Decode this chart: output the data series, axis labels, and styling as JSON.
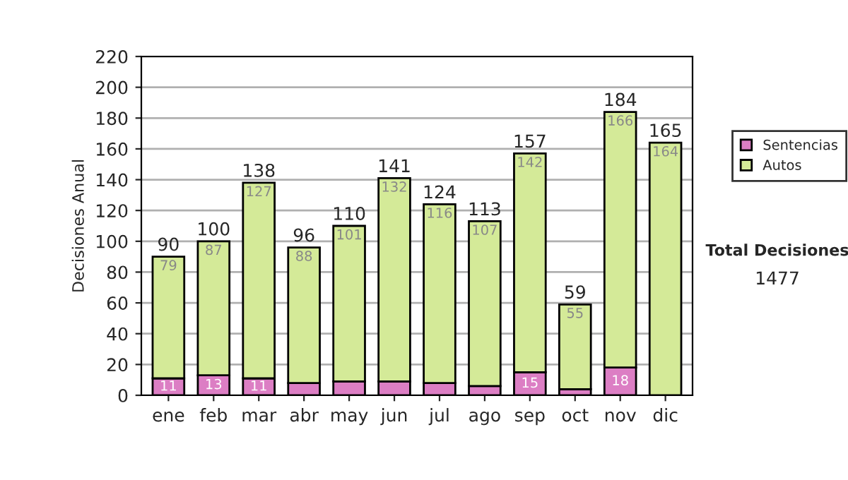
{
  "chart_data": {
    "type": "bar",
    "stacked": true,
    "ylabel": "Decisiones Anual",
    "categories": [
      "ene",
      "feb",
      "mar",
      "abr",
      "may",
      "jun",
      "jul",
      "ago",
      "sep",
      "oct",
      "nov",
      "dic"
    ],
    "series": [
      {
        "name": "Sentencias",
        "color": "#dc7ec4",
        "values": [
          11,
          13,
          11,
          8,
          9,
          9,
          8,
          6,
          15,
          4,
          18,
          null
        ],
        "value_labels": [
          "11",
          "13",
          "11",
          null,
          null,
          null,
          null,
          null,
          "15",
          null,
          "18",
          null
        ]
      },
      {
        "name": "Autos",
        "color": "#d4ea98",
        "values": [
          79,
          87,
          127,
          88,
          101,
          132,
          116,
          107,
          142,
          55,
          166,
          164
        ],
        "value_labels": [
          "79",
          "87",
          "127",
          "88",
          "101",
          "132",
          "116",
          "107",
          "142",
          "55",
          "166",
          "164"
        ]
      }
    ],
    "totals": [
      "90",
      "100",
      "138",
      "96",
      "110",
      "141",
      "124",
      "113",
      "157",
      "59",
      "184",
      "165"
    ],
    "ylim": [
      0,
      220
    ],
    "yticks": [
      0,
      20,
      40,
      60,
      80,
      100,
      120,
      140,
      160,
      180,
      200,
      220
    ],
    "grid": "y",
    "legend": "right",
    "annotations": [
      "Total Decisiones",
      "1477"
    ]
  }
}
